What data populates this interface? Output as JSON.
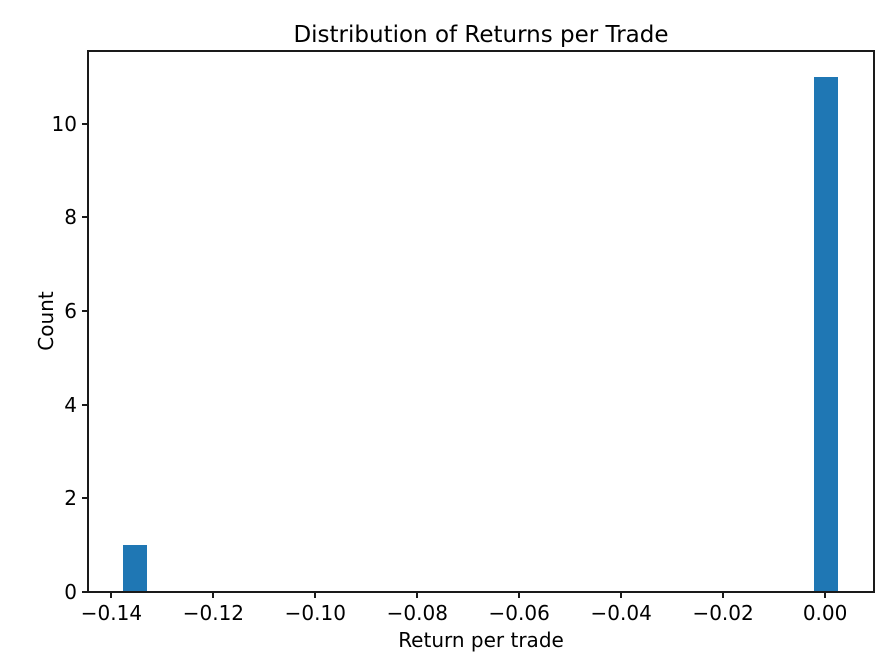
{
  "chart_data": {
    "type": "bar",
    "subtype": "histogram",
    "title": "Distribution of Returns per Trade",
    "xlabel": "Return per trade",
    "ylabel": "Count",
    "xlim": [
      -0.1446,
      0.0096
    ],
    "ylim": [
      0,
      11.55
    ],
    "grid": false,
    "legend": false,
    "bar_color": "#1f77b4",
    "axis_color": "#1a1a1a",
    "text_color": "#000000",
    "background_color": "#ffffff",
    "x_ticks": {
      "values": [
        -0.14,
        -0.12,
        -0.1,
        -0.08,
        -0.06,
        -0.04,
        -0.02,
        0.0
      ],
      "labels": [
        "−0.14",
        "−0.12",
        "−0.10",
        "−0.08",
        "−0.06",
        "−0.04",
        "−0.02",
        "0.00"
      ]
    },
    "y_ticks": {
      "values": [
        0,
        2,
        4,
        6,
        8,
        10
      ],
      "labels": [
        "0",
        "2",
        "4",
        "6",
        "8",
        "10"
      ]
    },
    "bars": [
      {
        "bin_start": -0.1377,
        "bin_end": -0.133,
        "count": 1
      },
      {
        "bin_start": -0.0022,
        "bin_end": 0.0025,
        "count": 11
      }
    ]
  }
}
